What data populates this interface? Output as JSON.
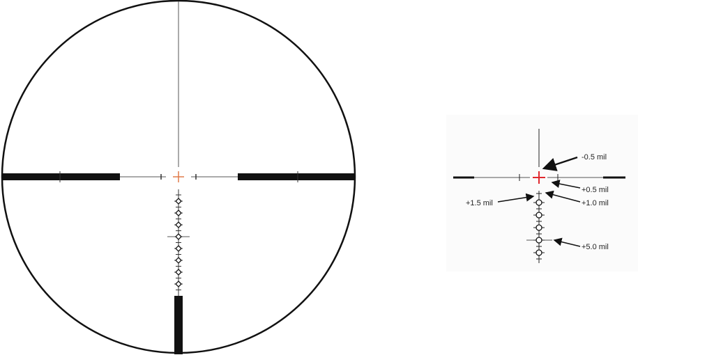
{
  "colors": {
    "reticle": "#111111",
    "thin_line": "#555555",
    "center_left": "#e07a4a",
    "center_right": "#e0282e",
    "inset_bg": "#fbfbfb"
  },
  "main_reticle": {
    "dots": 8
  },
  "inset": {
    "labels": {
      "minus_half": "-0.5 mil",
      "plus_half": "+0.5 mil",
      "plus_one": "+1.0 mil",
      "plus_one_half": "+1.5 mil",
      "plus_five": "+5.0 mil"
    }
  }
}
